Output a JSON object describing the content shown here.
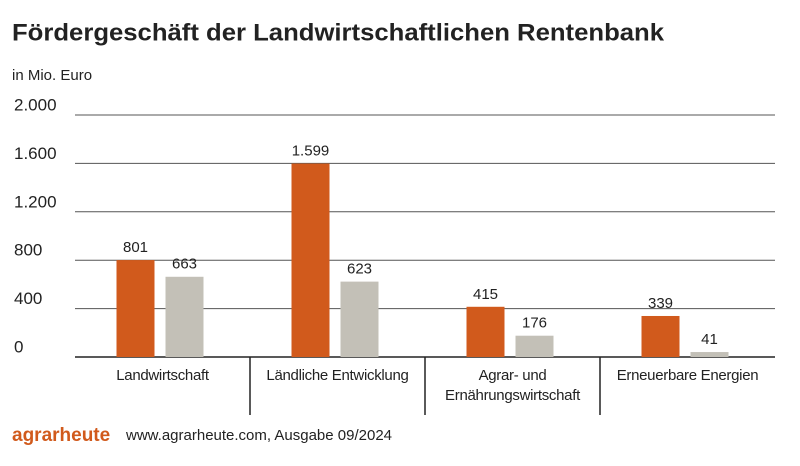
{
  "chart_data": {
    "type": "bar",
    "title": "Fördergeschäft der Landwirtschaftlichen Rentenbank",
    "subtitle": "in Mio. Euro",
    "categories": [
      "Landwirtschaft",
      "Ländliche Entwicklung",
      "Agrar- und Ernährungswirtschaft",
      "Erneuerbare Energien"
    ],
    "series": [
      {
        "color": "#d15a1c",
        "values": [
          801,
          1599,
          415,
          339
        ],
        "value_labels": [
          "801",
          "1.599",
          "415",
          "339"
        ]
      },
      {
        "color": "#c3c0b7",
        "values": [
          663,
          623,
          176,
          41
        ]
      }
    ],
    "ylim": [
      0,
      2000
    ],
    "yticks": [
      0,
      400,
      800,
      {
        "value": 1200,
        "label": "1.200"
      },
      {
        "value": 1600,
        "label": "1.600"
      },
      {
        "value": 2000,
        "label": "2.000"
      }
    ],
    "grid": true
  },
  "footer": {
    "logo": "agrarheute",
    "source": "www.agrarheute.com, Ausgabe 09/2024"
  }
}
